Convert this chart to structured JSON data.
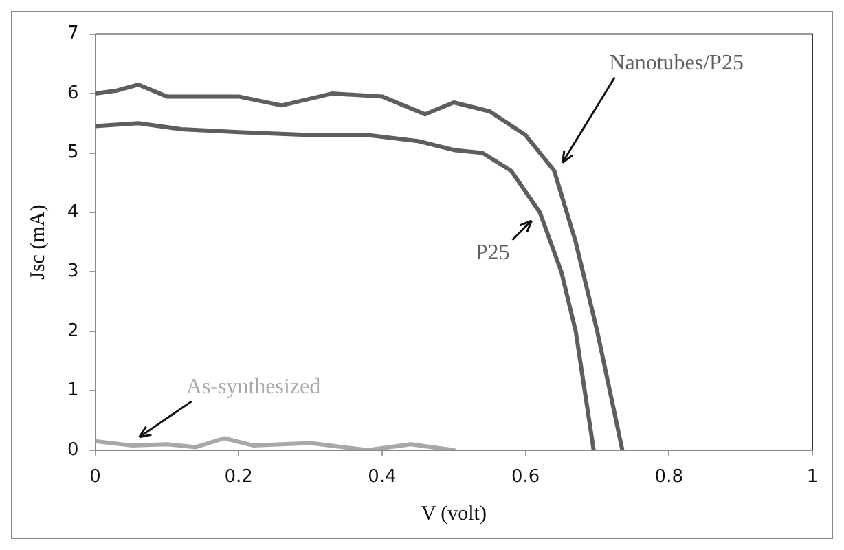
{
  "chart_data": {
    "type": "line",
    "xlabel": "V (volt)",
    "ylabel": "Jsc (mA)",
    "xlim": [
      0,
      1
    ],
    "xticks": [
      0,
      0.2,
      0.4,
      0.6,
      0.8,
      1
    ],
    "ylim": [
      0,
      7
    ],
    "yticks": [
      0,
      1,
      2,
      3,
      4,
      5,
      6,
      7
    ],
    "grid": false,
    "legend": false,
    "marker": "none",
    "line_style": "solid",
    "series": [
      {
        "name": "Nanotubes/P25",
        "color": "#5e5e5e",
        "x": [
          0,
          0.03,
          0.06,
          0.1,
          0.15,
          0.2,
          0.26,
          0.33,
          0.4,
          0.46,
          0.5,
          0.55,
          0.6,
          0.64,
          0.67,
          0.7,
          0.735
        ],
        "values": [
          6.0,
          6.05,
          6.15,
          5.95,
          5.95,
          5.95,
          5.8,
          6.0,
          5.95,
          5.65,
          5.85,
          5.7,
          5.3,
          4.7,
          3.5,
          2.0,
          0
        ]
      },
      {
        "name": "P25",
        "color": "#5e5e5e",
        "x": [
          0,
          0.06,
          0.12,
          0.2,
          0.3,
          0.38,
          0.45,
          0.5,
          0.54,
          0.58,
          0.62,
          0.65,
          0.67,
          0.695
        ],
        "values": [
          5.45,
          5.5,
          5.4,
          5.35,
          5.3,
          5.3,
          5.2,
          5.05,
          5.0,
          4.7,
          4.0,
          3.0,
          2.0,
          0
        ]
      },
      {
        "name": "As-synthesized",
        "color": "#a8a8a8",
        "x": [
          0,
          0.05,
          0.1,
          0.14,
          0.18,
          0.22,
          0.3,
          0.38,
          0.44,
          0.5
        ],
        "values": [
          0.15,
          0.08,
          0.1,
          0.05,
          0.2,
          0.08,
          0.12,
          0.0,
          0.1,
          0.0
        ]
      }
    ]
  }
}
